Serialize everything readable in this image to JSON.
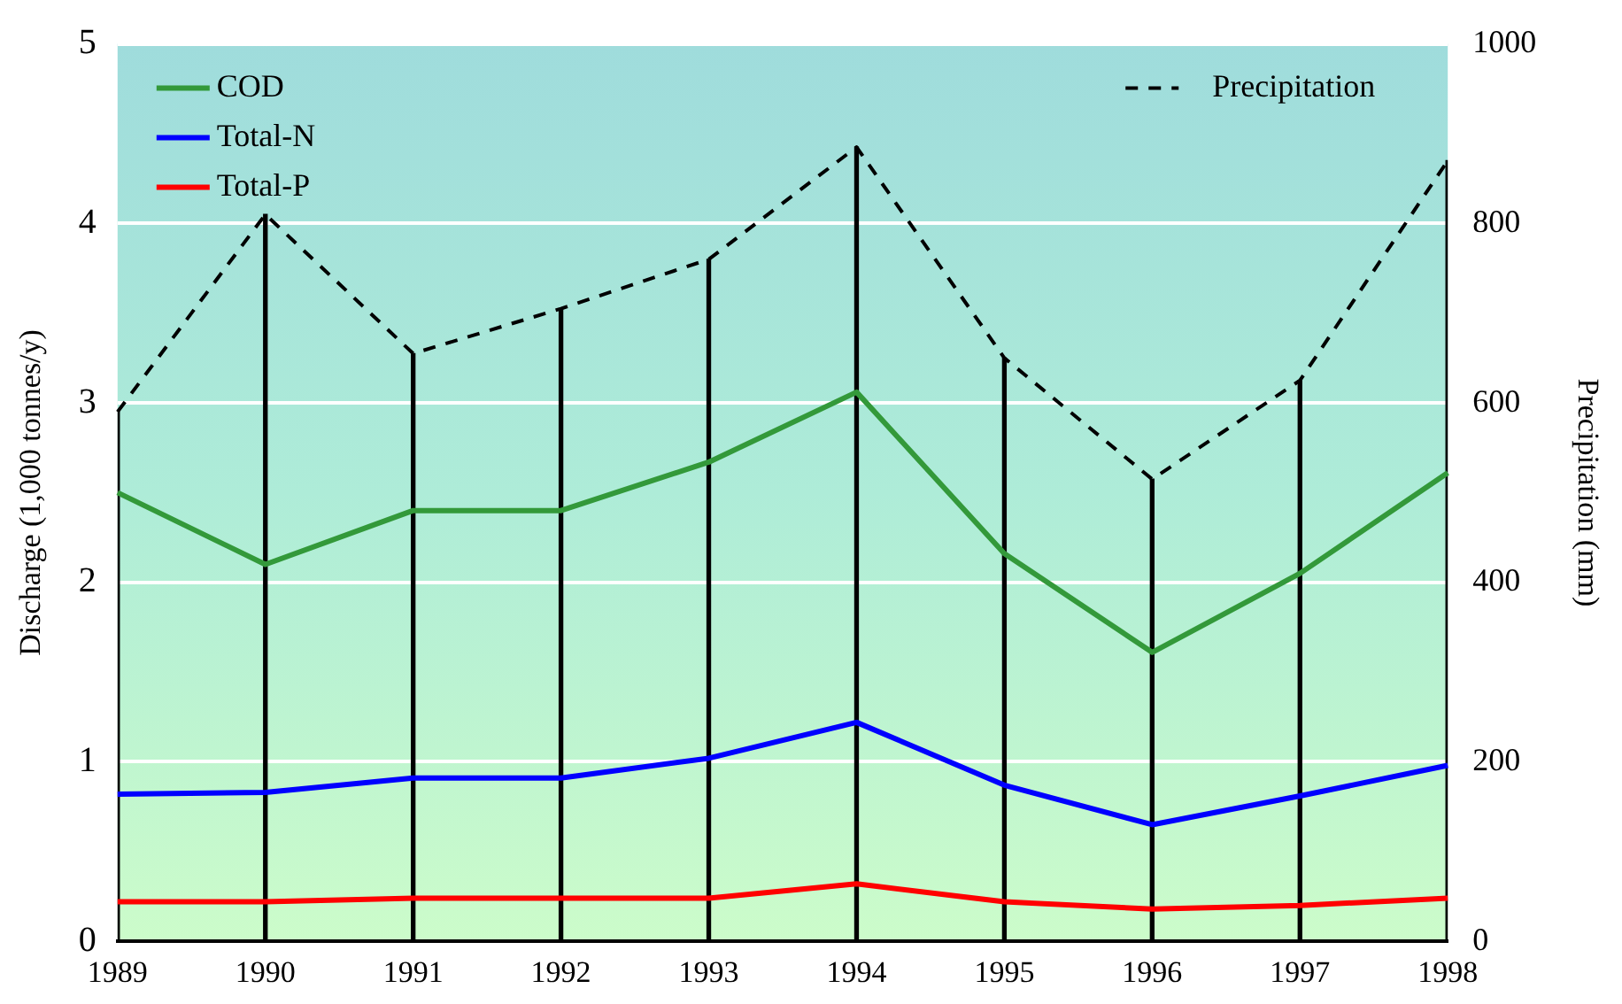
{
  "chart_data": {
    "type": "line",
    "xlabel": null,
    "ylabel": "Discharge (1,000 tonnes/y)",
    "y2label": "Precipitation (mm)",
    "categories": [
      "1989",
      "1990",
      "1991",
      "1992",
      "1993",
      "1994",
      "1995",
      "1996",
      "1997",
      "1998"
    ],
    "series": [
      {
        "type": "bar",
        "color": "#000000",
        "axis": "y2",
        "values": [
          590,
          810,
          655,
          705,
          760,
          885,
          650,
          515,
          625,
          870
        ]
      },
      {
        "name": "COD",
        "color": "#33993a",
        "values": [
          2.5,
          2.1,
          2.4,
          2.4,
          2.67,
          3.06,
          2.16,
          1.61,
          2.05,
          2.61
        ]
      },
      {
        "name": "Total-N",
        "color": "#0000ff",
        "values": [
          0.82,
          0.83,
          0.91,
          0.91,
          1.02,
          1.22,
          0.87,
          0.65,
          0.81,
          0.98
        ]
      },
      {
        "name": "Total-P",
        "color": "#ff0000",
        "values": [
          0.22,
          0.22,
          0.24,
          0.24,
          0.24,
          0.32,
          0.22,
          0.18,
          0.2,
          0.24
        ]
      },
      {
        "name": "Precipitation",
        "color": "#000000",
        "axis": "y2",
        "line_style": "dashed",
        "values": [
          590,
          810,
          655,
          705,
          760,
          885,
          650,
          515,
          625,
          870
        ]
      }
    ],
    "ylim": [
      0,
      5
    ],
    "yticks": [
      0,
      1,
      2,
      3,
      4,
      5
    ],
    "y2lim": [
      0,
      1000
    ],
    "y2ticks": [
      0,
      200,
      400,
      600,
      800,
      1000
    ],
    "grid": "y",
    "legend": "top",
    "marker": "none"
  }
}
